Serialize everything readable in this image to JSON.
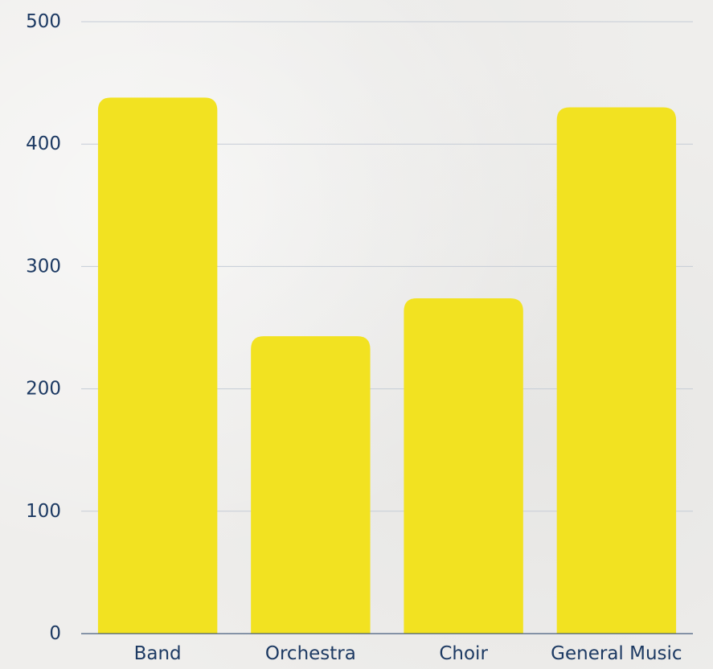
{
  "chart_data": {
    "type": "bar",
    "categories": [
      "Band",
      "Orchestra",
      "Choir",
      "General Music"
    ],
    "values": [
      438,
      243,
      274,
      430
    ],
    "ylim": [
      0,
      500
    ],
    "yticks": [
      "0",
      "100",
      "200",
      "300",
      "400",
      "500"
    ],
    "grid": true,
    "colors": {
      "bar": "#f2e221",
      "grid": "#c5ccd6",
      "axis": "#1d3a63",
      "text": "#1d3a63"
    }
  }
}
